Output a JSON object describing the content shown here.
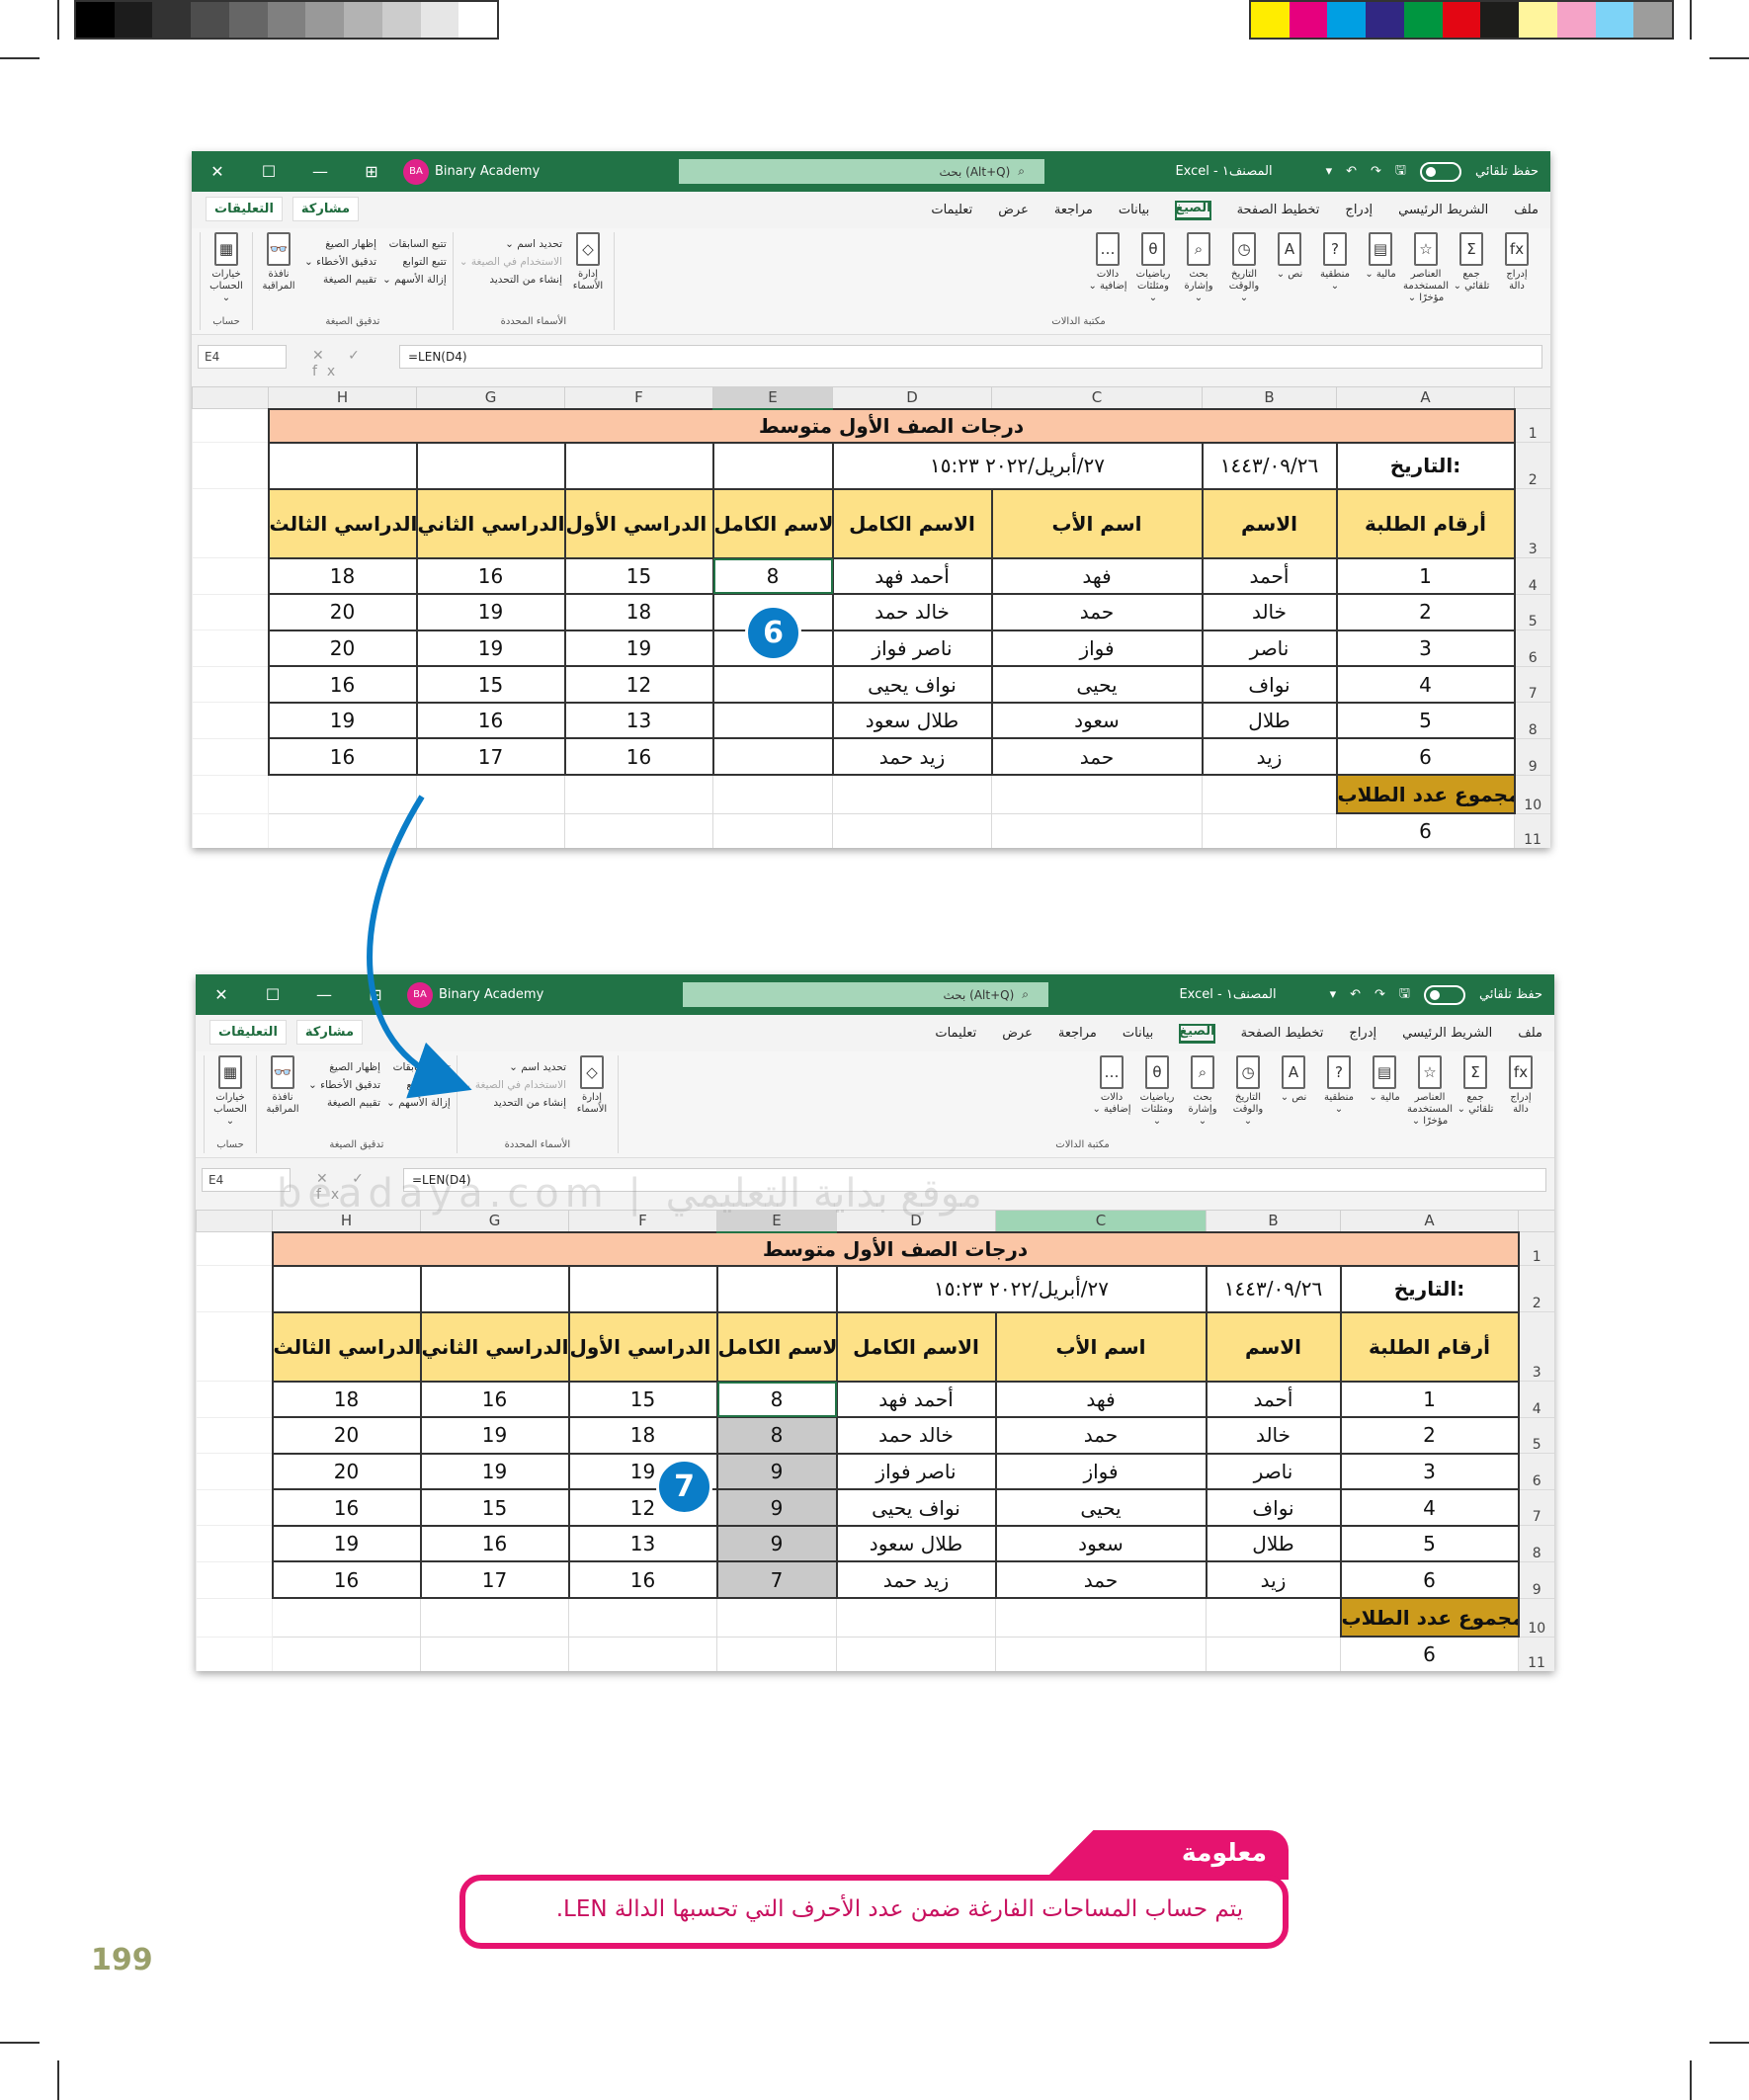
{
  "color_bar": {
    "grays": [
      "#000000",
      "#1c1c1c",
      "#333333",
      "#4d4d4d",
      "#666666",
      "#808080",
      "#999999",
      "#b3b3b3",
      "#cccccc",
      "#e6e6e6",
      "#ffffff"
    ],
    "colors": [
      "#ffed00",
      "#e6007e",
      "#009fe3",
      "#312783",
      "#009640",
      "#e30613",
      "#1d1d1b",
      "#fff59d",
      "#f5a3c7",
      "#7dd3f7",
      "#9d9d9c"
    ]
  },
  "excel": {
    "title_bar": {
      "close": "✕",
      "restore": "☐",
      "minimize": "—",
      "ribbon_display": "⊞",
      "avatar": "BA",
      "account": "Binary Academy",
      "search": "بحث (Alt+Q)",
      "search_icon": "⌕",
      "file_title": "المصنف١ - Excel",
      "autosave": "حفظ تلقائي",
      "save_icon": "🖫",
      "undo_icon": "↶",
      "redo_icon": "↷",
      "more": "▾"
    },
    "tabs": [
      "ملف",
      "الشريط الرئيسي",
      "إدراج",
      "تخطيط الصفحة",
      "الصيغ",
      "بيانات",
      "مراجعة",
      "عرض",
      "تعليمات"
    ],
    "active_tab": "الصيغ",
    "share": "مشاركة",
    "comments": "التعليقات",
    "ribbon": {
      "function_library": {
        "label": "مكتبة الدالات",
        "items": [
          {
            "icon": "fx",
            "label": "إدراج دالة"
          },
          {
            "icon": "Σ",
            "label": "جمع تلقائي ⌄"
          },
          {
            "icon": "☆",
            "label": "العناصر المستخدمة مؤخرًا ⌄"
          },
          {
            "icon": "▤",
            "label": "مالية ⌄"
          },
          {
            "icon": "?",
            "label": "منطقية ⌄"
          },
          {
            "icon": "A",
            "label": "نص ⌄"
          },
          {
            "icon": "◷",
            "label": "التاريخ والوقت ⌄"
          },
          {
            "icon": "⌕",
            "label": "بحث وإشارة ⌄"
          },
          {
            "icon": "θ",
            "label": "رياضيات ومثلثات ⌄"
          },
          {
            "icon": "…",
            "label": "دالات إضافية ⌄"
          }
        ]
      },
      "defined_names": {
        "label": "الأسماء المحددة",
        "manager": {
          "icon": "◇",
          "label": "إدارة الأسماء"
        },
        "small": [
          "تحديد اسم ⌄",
          "الاستخدام في الصيغة ⌄",
          "إنشاء من التحديد"
        ]
      },
      "formula_auditing": {
        "label": "تدقيق الصيغة",
        "col1": [
          "تتبع السابقات",
          "تتبع التوابع",
          "إزالة الأسهم ⌄"
        ],
        "col2": [
          "إظهار الصيغ",
          "تدقيق الأخطاء ⌄",
          "تقييم الصيغة"
        ],
        "watch": {
          "icon": "👓",
          "label": "نافذة المراقبة"
        }
      },
      "calculation": {
        "label": "حساب",
        "options": {
          "icon": "▦",
          "label": "خيارات الحساب ⌄"
        }
      }
    },
    "name_box": "E4",
    "formula_icons": "✕ ✓ fx",
    "formula": "=LEN(D4)",
    "columns": [
      "H",
      "G",
      "F",
      "E",
      "D",
      "C",
      "B",
      "A"
    ],
    "row_numbers": [
      "1",
      "2",
      "3",
      "4",
      "5",
      "6",
      "7",
      "8",
      "9",
      "10",
      "11"
    ],
    "sheet_title": "درجات الصف الأول متوسط",
    "date_label": "التاريخ:",
    "hijri_date": "١٤٤٣/٠٩/٢٦",
    "gregorian_date": "٢٧/أبريل/٢٠٢٢ ١٥:٢٣",
    "headers": {
      "A": "أرقام الطلبة",
      "B": "الاسم",
      "C": "اسم الأب",
      "D": "الاسم الكامل",
      "E": "عدد أحرف الاسم الكامل",
      "F": "درجات الفصل الدراسي الأول",
      "G": "درجات الفصل الدراسي الثاني",
      "H": "درجات الفصل الدراسي الثالث"
    },
    "students": [
      {
        "num": "1",
        "name": "أحمد",
        "father": "فهد",
        "full": "أحمد فهد",
        "g1": "15",
        "g2": "16",
        "g3": "18"
      },
      {
        "num": "2",
        "name": "خالد",
        "father": "حمد",
        "full": "خالد حمد",
        "g1": "18",
        "g2": "19",
        "g3": "20"
      },
      {
        "num": "3",
        "name": "ناصر",
        "father": "فواز",
        "full": "ناصر فواز",
        "g1": "19",
        "g2": "19",
        "g3": "20"
      },
      {
        "num": "4",
        "name": "نواف",
        "father": "يحيى",
        "full": "نواف يحيى",
        "g1": "12",
        "g2": "15",
        "g3": "16"
      },
      {
        "num": "5",
        "name": "طلال",
        "father": "سعود",
        "full": "طلال سعود",
        "g1": "13",
        "g2": "16",
        "g3": "19"
      },
      {
        "num": "6",
        "name": "زيد",
        "father": "حمد",
        "full": "زيد حمد",
        "g1": "16",
        "g2": "17",
        "g3": "16"
      }
    ],
    "total_label": "مجموع عدد الطلاب",
    "total_value": "6",
    "accent": "#217346"
  },
  "top_window": {
    "e_values": [
      "8",
      "",
      "",
      "",
      "",
      ""
    ],
    "step_badge": "6"
  },
  "bottom_window": {
    "e_values": [
      "8",
      "8",
      "9",
      "9",
      "9",
      "7"
    ],
    "step_badge": "7"
  },
  "watermark": "beadaya.com | موقع بداية التعليمي",
  "info": {
    "title": "معلومة",
    "text": "يتم حساب المساحات الفارغة ضمن عدد الأحرف التي تحسبها الدالة LEN."
  },
  "page_number": "199"
}
